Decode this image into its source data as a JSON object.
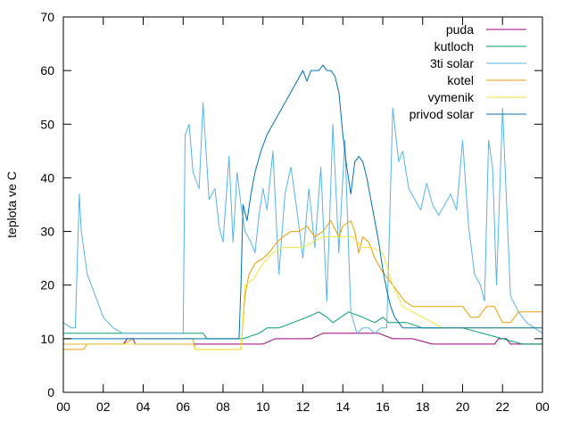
{
  "chart_data": {
    "type": "line",
    "title": "",
    "xlabel": "",
    "ylabel": "teplota ve C",
    "xlim": [
      0,
      24
    ],
    "ylim": [
      0,
      70
    ],
    "x_ticks": [
      "00",
      "02",
      "04",
      "06",
      "08",
      "10",
      "12",
      "14",
      "16",
      "18",
      "20",
      "22",
      "00"
    ],
    "x_tick_values": [
      0,
      2,
      4,
      6,
      8,
      10,
      12,
      14,
      16,
      18,
      20,
      22,
      24
    ],
    "y_ticks": [
      0,
      10,
      20,
      30,
      40,
      50,
      60,
      70
    ],
    "grid": false,
    "legend_position": "top-right",
    "colors": {
      "puda": "#a0007c",
      "kutloch": "#009e73",
      "3ti solar": "#56b4e9",
      "kotel": "#e69f00",
      "vymenik": "#f0e442",
      "privod solar": "#0072b2"
    },
    "series": [
      {
        "name": "puda",
        "x": [
          0,
          3.0,
          3.2,
          3.5,
          3.6,
          9.0,
          10.0,
          10.6,
          11.5,
          12.4,
          13.0,
          15.8,
          16.5,
          17.5,
          18.5,
          20.0,
          20.8,
          21.6,
          21.8,
          22.2,
          22.4,
          24
        ],
        "y": [
          9,
          9,
          10,
          10,
          9,
          9,
          9,
          10,
          10,
          10,
          11,
          11,
          10,
          10,
          9,
          9,
          9,
          9,
          10,
          10,
          9,
          9
        ]
      },
      {
        "name": "kutloch",
        "x": [
          0,
          3.0,
          3.3,
          7.0,
          7.2,
          9.0,
          9.8,
          10.2,
          10.8,
          11.5,
          12.2,
          12.8,
          13.2,
          13.5,
          13.9,
          14.3,
          15.0,
          15.6,
          16.0,
          16.3,
          16.7,
          17.2,
          18.0,
          20.0,
          22.0,
          23.0,
          24
        ],
        "y": [
          11,
          11,
          11,
          11,
          10,
          10,
          11,
          12,
          12,
          13,
          14,
          15,
          14,
          13,
          14,
          15,
          14,
          13,
          14,
          13,
          13,
          13,
          12,
          12,
          10,
          9,
          9
        ]
      },
      {
        "name": "3ti solar",
        "x": [
          0,
          0.4,
          0.6,
          0.8,
          0.9,
          1.2,
          1.6,
          2.0,
          2.5,
          3.0,
          4.0,
          5.0,
          6.0,
          6.1,
          6.3,
          6.5,
          6.8,
          7.0,
          7.3,
          7.6,
          7.8,
          8.0,
          8.3,
          8.5,
          8.7,
          8.9,
          9.1,
          9.4,
          9.6,
          9.8,
          10.0,
          10.2,
          10.5,
          10.8,
          11.1,
          11.4,
          11.7,
          12.0,
          12.3,
          12.6,
          12.9,
          13.2,
          13.5,
          13.8,
          14.1,
          14.4,
          14.7,
          15.0,
          15.3,
          15.6,
          15.9,
          16.2,
          16.5,
          16.8,
          17.0,
          17.3,
          17.6,
          17.9,
          18.2,
          18.5,
          18.8,
          19.1,
          19.4,
          19.7,
          20.0,
          20.3,
          20.6,
          20.9,
          21.1,
          21.3,
          21.5,
          21.7,
          22.0,
          22.4,
          22.8,
          23.2,
          23.6,
          24
        ],
        "y": [
          13,
          12,
          12,
          37,
          30,
          22,
          18,
          14,
          12,
          11,
          11,
          11,
          11,
          48,
          50,
          41,
          38,
          54,
          36,
          38,
          31,
          28,
          44,
          28,
          41,
          35,
          30,
          28,
          26,
          33,
          38,
          34,
          45,
          22,
          37,
          42,
          34,
          25,
          38,
          27,
          42,
          17,
          50,
          26,
          47,
          15,
          11,
          12,
          12,
          11,
          12,
          12,
          53,
          43,
          45,
          38,
          36,
          34,
          39,
          35,
          33,
          35,
          37,
          34,
          47,
          31,
          22,
          20,
          17,
          47,
          42,
          20,
          53,
          18,
          15,
          13,
          12,
          11
        ]
      },
      {
        "name": "kotel",
        "x": [
          0,
          1.0,
          1.2,
          2.5,
          3.0,
          3.5,
          5.0,
          6.5,
          6.6,
          8.0,
          8.5,
          8.9,
          9.1,
          9.3,
          9.6,
          10.0,
          10.3,
          10.7,
          11.0,
          11.4,
          11.8,
          12.2,
          12.6,
          13.0,
          13.4,
          13.8,
          14.0,
          14.4,
          14.6,
          14.8,
          15.0,
          15.3,
          15.6,
          15.9,
          16.3,
          16.7,
          17.1,
          17.5,
          18.0,
          18.5,
          19.0,
          19.5,
          20.0,
          20.4,
          20.8,
          21.2,
          21.6,
          22.0,
          22.4,
          22.8,
          23.2,
          23.6,
          24
        ],
        "y": [
          8,
          8,
          9,
          9,
          9,
          10,
          10,
          10,
          8,
          8,
          8,
          8,
          18,
          22,
          24,
          25,
          26,
          28,
          29,
          30,
          30,
          31,
          29,
          30,
          32,
          29,
          31,
          32,
          30,
          26,
          29,
          28,
          25,
          23,
          21,
          19,
          17,
          16,
          16,
          16,
          16,
          16,
          16,
          14,
          14,
          16,
          16,
          13,
          13,
          15,
          15,
          15,
          15
        ]
      },
      {
        "name": "vymenik",
        "x": [
          0,
          2.0,
          2.5,
          3.0,
          5.0,
          6.5,
          6.6,
          8.0,
          8.5,
          8.9,
          9.1,
          9.5,
          10.0,
          10.5,
          11.0,
          11.5,
          12.0,
          12.5,
          13.0,
          13.5,
          14.0,
          14.5,
          15.0,
          15.5,
          16.0,
          16.5,
          17.0,
          17.5,
          18.0,
          18.5,
          19.0,
          19.5,
          20.0,
          20.5,
          21.0,
          21.5,
          22.0,
          22.5,
          23.0,
          24
        ],
        "y": [
          9,
          9,
          9,
          9,
          9,
          9,
          8,
          8,
          8,
          8,
          20,
          21,
          24,
          26,
          27,
          27,
          27,
          28,
          29,
          29,
          29,
          29,
          27,
          27,
          26,
          20,
          16,
          15,
          14,
          13,
          12,
          12,
          12,
          12,
          12,
          12,
          12,
          12,
          12,
          12
        ]
      },
      {
        "name": "privod solar",
        "x": [
          0,
          1.0,
          2.0,
          3.0,
          4.0,
          5.0,
          6.0,
          7.0,
          8.0,
          8.8,
          8.9,
          9.0,
          9.2,
          9.4,
          9.6,
          9.9,
          10.2,
          10.5,
          10.8,
          11.1,
          11.4,
          11.7,
          12.0,
          12.2,
          12.4,
          12.6,
          12.8,
          13.0,
          13.2,
          13.4,
          13.6,
          13.8,
          14.0,
          14.2,
          14.4,
          14.6,
          14.8,
          15.0,
          15.2,
          15.4,
          15.6,
          15.8,
          16.0,
          16.2,
          16.4,
          16.6,
          16.8,
          17.0,
          17.5,
          18.0,
          19.0,
          20.0,
          21.0,
          22.0,
          23.0,
          24
        ],
        "y": [
          10,
          10,
          10,
          10,
          10,
          10,
          10,
          10,
          10,
          10,
          20,
          35,
          32,
          37,
          41,
          45,
          48,
          50,
          52,
          54,
          56,
          58,
          60,
          58,
          60,
          60,
          60,
          61,
          60,
          60,
          59,
          56,
          48,
          42,
          37,
          43,
          44,
          43,
          40,
          36,
          32,
          28,
          23,
          19,
          16,
          14,
          13,
          12,
          12,
          12,
          12,
          12,
          12,
          12,
          12,
          12
        ]
      }
    ]
  }
}
